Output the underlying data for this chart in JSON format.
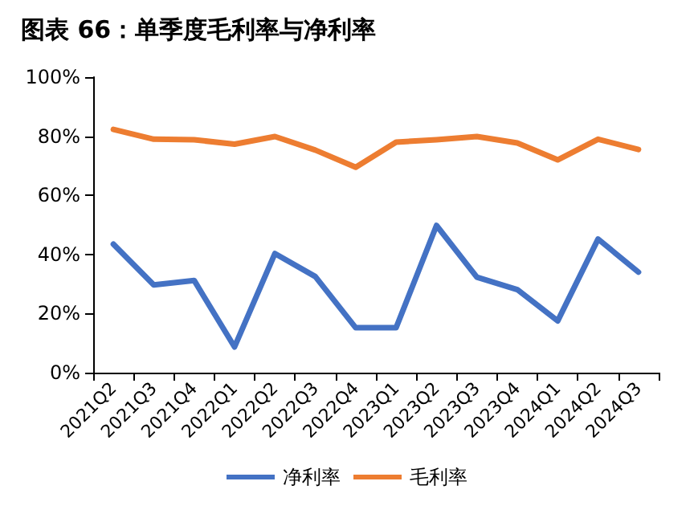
{
  "chart_data": {
    "type": "line",
    "title": "图表 66：单季度毛利率与净利率",
    "categories": [
      "2021Q2",
      "2021Q3",
      "2021Q4",
      "2022Q1",
      "2022Q2",
      "2022Q3",
      "2022Q4",
      "2023Q1",
      "2023Q2",
      "2023Q3",
      "2023Q4",
      "2024Q1",
      "2024Q2",
      "2024Q3"
    ],
    "series": [
      {
        "name": "净利率",
        "color": "#4472c4",
        "values": [
          43.5,
          29.7,
          31.2,
          8.7,
          40.3,
          32.5,
          15.2,
          15.2,
          49.8,
          32.3,
          28.1,
          17.5,
          45.2,
          34
        ]
      },
      {
        "name": "毛利率",
        "color": "#ed7d31",
        "values": [
          82.3,
          79,
          78.8,
          77.3,
          79.9,
          75.3,
          69.5,
          78,
          78.8,
          79.9,
          77.7,
          72,
          79,
          75.5
        ]
      }
    ],
    "ylim": [
      0,
      100
    ],
    "yticks": [
      {
        "value": 0,
        "label": "0%"
      },
      {
        "value": 20,
        "label": "20%"
      },
      {
        "value": 40,
        "label": "40%"
      },
      {
        "value": 60,
        "label": "60%"
      },
      {
        "value": 80,
        "label": "80%"
      },
      {
        "value": 100,
        "label": "100%"
      }
    ],
    "grid": false,
    "legend": "bottom",
    "marker": "none",
    "line_style": "solid"
  }
}
